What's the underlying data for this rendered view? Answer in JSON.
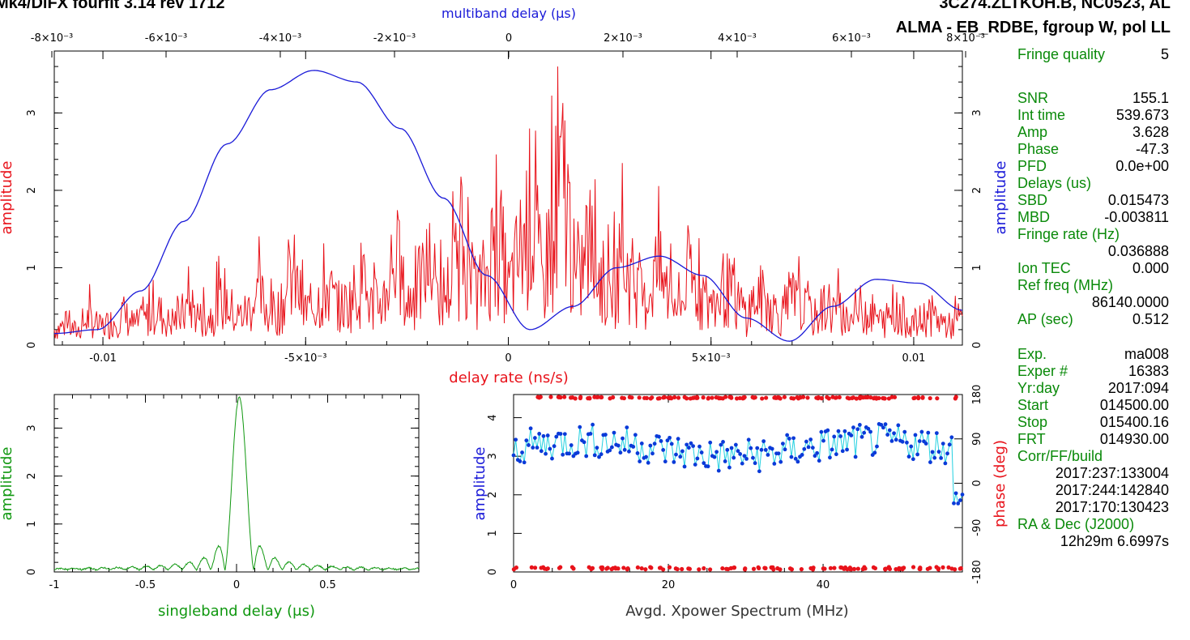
{
  "header": {
    "title_left": "Mk4/DiFX fourfit 3.14 rev 1712",
    "title_right_1": "3C274.ZLTKOH.B, NC0523, AL",
    "title_right_2": "ALMA - EB_RDBE, fgroup W, pol LL"
  },
  "colors": {
    "red": "#e8131b",
    "blue": "#1a1ad8",
    "green": "#109810",
    "cyan": "#22d0e0",
    "darkblue": "#0a3ad8"
  },
  "chart_data": [
    {
      "type": "line",
      "id": "main",
      "xlabel": "delay rate (ns/s)",
      "ylabel": "amplitude",
      "xlabel_top": "multiband delay (μs)",
      "ylabel_right": "amplitude",
      "xlim": [
        -0.0112,
        0.0112
      ],
      "ylim": [
        0,
        3.8
      ],
      "x_ticks": [
        "-0.01",
        "-5×10⁻³",
        "0",
        "5×10⁻³",
        "0.01"
      ],
      "x_top_ticks": [
        "-8×10⁻³",
        "-6×10⁻³",
        "-4×10⁻³",
        "-2×10⁻³",
        "0",
        "2×10⁻³",
        "4×10⁻³",
        "6×10⁻³",
        "8×10⁻³"
      ],
      "y_ticks": [
        "0",
        "1",
        "2",
        "3"
      ],
      "y_right_ticks": [
        "0",
        "1",
        "2",
        "3"
      ],
      "series": [
        {
          "color": "red",
          "description_of_shape": "noisy fringe-rate amplitude",
          "values": [
            0.35,
            0.45,
            0.3,
            0.6,
            0.4,
            0.5,
            0.7,
            0.45,
            0.55,
            0.8,
            0.5,
            0.6,
            0.9,
            0.55,
            0.7,
            1.05,
            0.6,
            0.75,
            1.1,
            0.7,
            0.8,
            1.6,
            0.75,
            0.9,
            1.3,
            0.8,
            0.95,
            1.4,
            0.85,
            1.0,
            2.1,
            0.9,
            1.2,
            1.8,
            1.0,
            1.4,
            2.3,
            1.1,
            1.5,
            2.6,
            1.2,
            2.0,
            3.0,
            1.3,
            2.9,
            3.6,
            1.1,
            2.3,
            1.6,
            1.0,
            1.9,
            1.4,
            0.9,
            1.7,
            1.2,
            0.8,
            1.5,
            1.1,
            0.75,
            1.3,
            1.0,
            0.7,
            1.1,
            0.9,
            0.65,
            1.0,
            0.8,
            0.6,
            0.9,
            0.75,
            0.55,
            0.8,
            0.7,
            0.5,
            0.75,
            0.6,
            0.45,
            0.7,
            0.55,
            0.4,
            0.6
          ]
        },
        {
          "color": "blue",
          "description_of_shape": "multiband delay amplitude",
          "values": [
            0.15,
            0.2,
            0.7,
            1.6,
            2.6,
            3.3,
            3.55,
            3.4,
            2.8,
            1.9,
            0.9,
            0.2,
            0.5,
            1.0,
            1.15,
            0.9,
            0.35,
            0.05,
            0.5,
            0.85,
            0.8,
            0.45
          ]
        }
      ]
    },
    {
      "type": "line",
      "id": "sbd",
      "xlabel": "singleband delay (μs)",
      "ylabel": "amplitude",
      "xlim": [
        -1,
        1
      ],
      "ylim": [
        0,
        3.7
      ],
      "x_ticks": [
        "-1",
        "-0.5",
        "0",
        "0.5"
      ],
      "y_ticks": [
        "0",
        "1",
        "2",
        "3"
      ],
      "series": [
        {
          "color": "green",
          "peak_x": 0.015,
          "peak_y": 3.6
        }
      ]
    },
    {
      "type": "scatter",
      "id": "xpower",
      "xlabel": "Avgd. Xpower Spectrum (MHz)",
      "ylabel": "amplitude",
      "ylabel_right": "phase (deg)",
      "xlim": [
        0,
        58
      ],
      "ylim": [
        0,
        4.6
      ],
      "x_ticks": [
        "0",
        "20",
        "40"
      ],
      "y_ticks": [
        "0",
        "1",
        "2",
        "3",
        "4"
      ],
      "y_right_ticks": [
        "-180",
        "-90",
        "0",
        "90",
        "180"
      ],
      "series": [
        {
          "name": "amplitude",
          "color": "blue",
          "mean": 3.2
        },
        {
          "name": "phase",
          "color": "red",
          "levels": [
            -175,
            175
          ]
        }
      ]
    }
  ],
  "sidebar": {
    "fringe_quality_label": "Fringe quality",
    "fringe_quality": "5",
    "snr_label": "SNR",
    "snr": "155.1",
    "int_time_label": "Int time",
    "int_time": "539.673",
    "amp_label": "Amp",
    "amp": "3.628",
    "phase_label": "Phase",
    "phase": "-47.3",
    "pfd_label": "PFD",
    "pfd": "0.0e+00",
    "delays_label": "Delays (us)",
    "sbd_label": "SBD",
    "sbd": "0.015473",
    "mbd_label": "MBD",
    "mbd": "-0.003811",
    "fringe_rate_label": "Fringe rate (Hz)",
    "fringe_rate": "0.036888",
    "ion_tec_label": "Ion TEC",
    "ion_tec": "0.000",
    "ref_freq_label": "Ref freq (MHz)",
    "ref_freq": "86140.0000",
    "ap_label": "AP (sec)",
    "ap": "0.512",
    "exp_label": "Exp.",
    "exp": "ma008",
    "exper_label": "Exper #",
    "exper": "16383",
    "yrday_label": "Yr:day",
    "yrday": "2017:094",
    "start_label": "Start",
    "start": "014500.00",
    "stop_label": "Stop",
    "stop": "015400.16",
    "frt_label": "FRT",
    "frt": "014930.00",
    "corr_label": "Corr/FF/build",
    "corr1": "2017:237:133004",
    "corr2": "2017:244:142840",
    "corr3": "2017:170:130423",
    "radec_label": "RA & Dec (J2000)",
    "ra": "12h29m 6.6997s"
  }
}
